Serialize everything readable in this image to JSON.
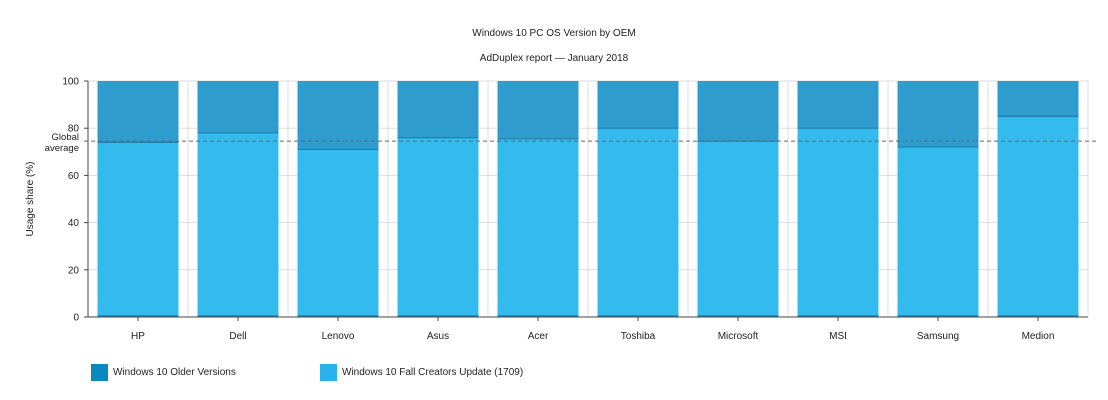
{
  "chart_data": {
    "type": "bar",
    "stacked": true,
    "title": "Windows 10 PC OS Version by OEM",
    "subtitle": "AdDuplex report — January 2018",
    "xlabel": "",
    "ylabel": "Usage share (%)",
    "ylim": [
      0,
      100
    ],
    "yticks": [
      0,
      20,
      40,
      60,
      80,
      100
    ],
    "grid": true,
    "legend_position": "bottom-left",
    "categories": [
      "HP",
      "Dell",
      "Lenovo",
      "Asus",
      "Acer",
      "Toshiba",
      "Microsoft",
      "MSI",
      "Samsung",
      "Medion"
    ],
    "series": [
      {
        "name": "Windows 10 Fall Creators Update (1709)",
        "color": "#33bbee",
        "values": [
          74,
          78,
          71,
          76,
          75.5,
          80,
          74.5,
          80,
          72,
          85
        ]
      },
      {
        "name": "Windows 10 Older Versions",
        "color": "#2e9ccc",
        "values": [
          26,
          22,
          29,
          24,
          24.5,
          20,
          25.5,
          20,
          28,
          15
        ]
      }
    ],
    "reference_line": {
      "label_line1": "Global",
      "label_line2": "average",
      "value": 74.5,
      "color": "#666666"
    }
  },
  "legend": {
    "items": [
      {
        "label": "Windows 10 Older Versions",
        "color": "#0a88c0"
      },
      {
        "label": "Windows 10 Fall Creators Update (1709)",
        "color": "#29b3ec"
      }
    ]
  }
}
